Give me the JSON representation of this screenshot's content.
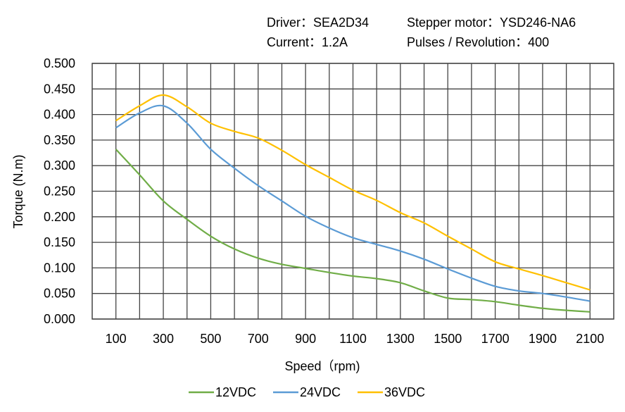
{
  "header": {
    "driver": "Driver：SEA2D34",
    "motor": "Stepper motor：YSD246-NA6",
    "current": "Current：1.2A",
    "pulses": "Pulses / Revolution：400"
  },
  "chart_data": {
    "type": "line",
    "title": "",
    "xlabel": "Speed（rpm)",
    "ylabel": "Torque (N.m)",
    "xlim": [
      0,
      2200
    ],
    "ylim": [
      0,
      0.5
    ],
    "grid": true,
    "legend_position": "bottom",
    "x_tick_labels": [
      "100",
      "300",
      "500",
      "700",
      "900",
      "1100",
      "1300",
      "1500",
      "1700",
      "1900",
      "2100"
    ],
    "y_tick_labels": [
      "0.000",
      "0.050",
      "0.100",
      "0.150",
      "0.200",
      "0.250",
      "0.300",
      "0.350",
      "0.400",
      "0.450",
      "0.500"
    ],
    "x": [
      100,
      200,
      300,
      400,
      500,
      600,
      700,
      800,
      900,
      1000,
      1100,
      1200,
      1300,
      1400,
      1500,
      1600,
      1700,
      1800,
      1900,
      2000,
      2100
    ],
    "series": [
      {
        "name": "12VDC",
        "color": "#70ad47",
        "values": [
          0.332,
          0.282,
          0.231,
          0.195,
          0.162,
          0.137,
          0.119,
          0.107,
          0.099,
          0.091,
          0.084,
          0.079,
          0.071,
          0.055,
          0.041,
          0.038,
          0.034,
          0.027,
          0.021,
          0.017,
          0.014
        ]
      },
      {
        "name": "24VDC",
        "color": "#5b9bd5",
        "values": [
          0.374,
          0.403,
          0.417,
          0.383,
          0.332,
          0.295,
          0.261,
          0.231,
          0.201,
          0.178,
          0.159,
          0.146,
          0.133,
          0.117,
          0.098,
          0.08,
          0.064,
          0.055,
          0.05,
          0.043,
          0.035
        ]
      },
      {
        "name": "36VDC",
        "color": "#ffc000",
        "values": [
          0.388,
          0.417,
          0.438,
          0.415,
          0.383,
          0.367,
          0.354,
          0.33,
          0.302,
          0.277,
          0.252,
          0.232,
          0.208,
          0.188,
          0.162,
          0.137,
          0.112,
          0.098,
          0.085,
          0.071,
          0.057
        ]
      }
    ]
  }
}
